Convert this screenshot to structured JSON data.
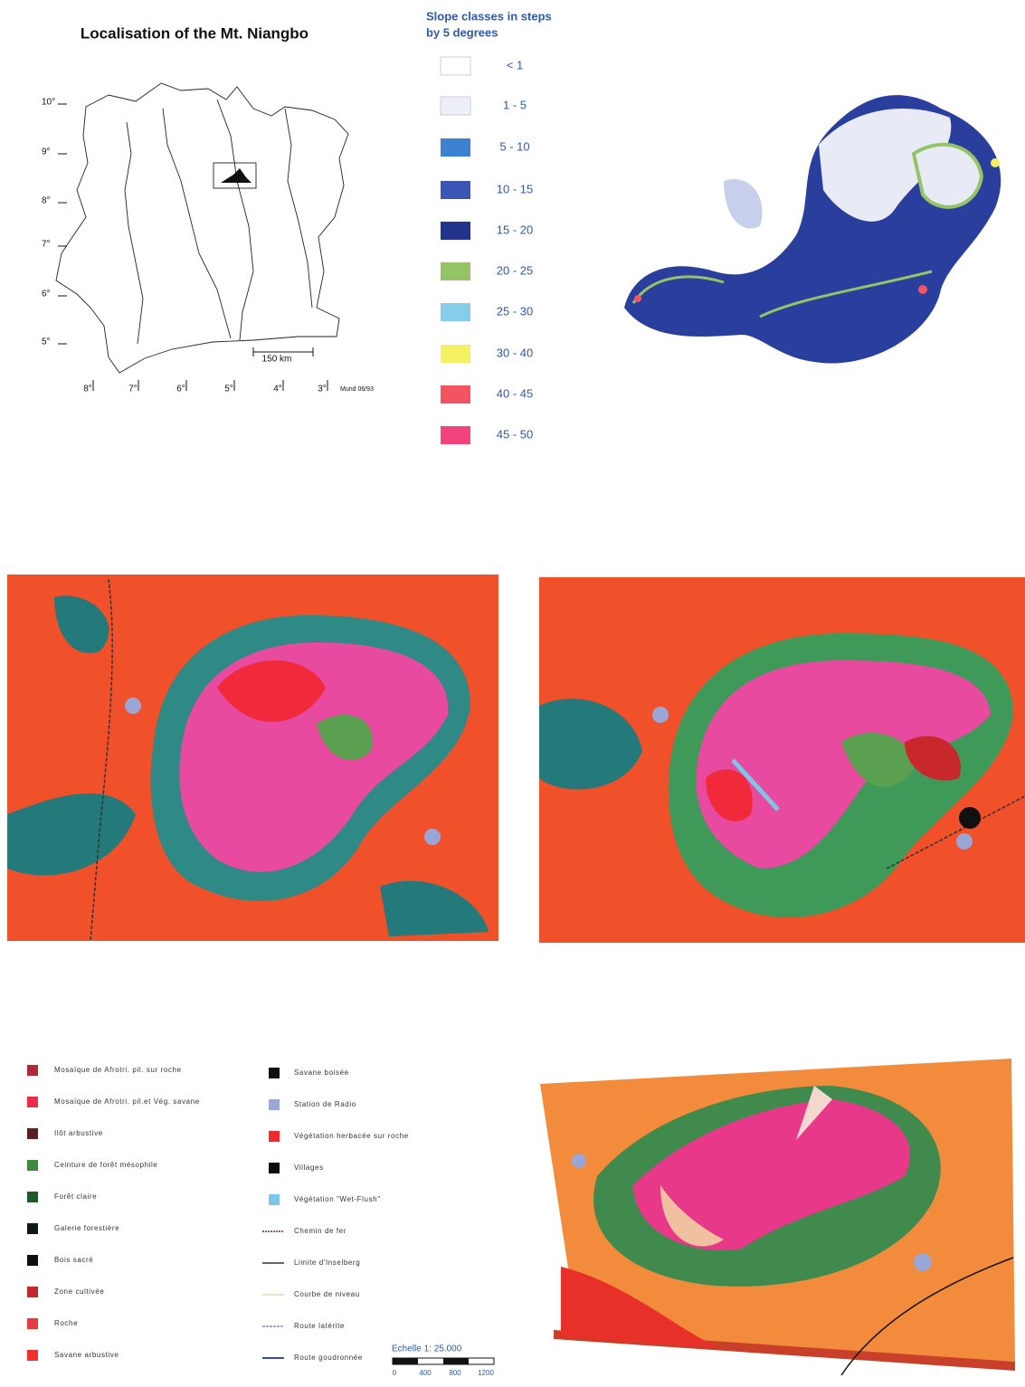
{
  "location_map": {
    "title": "Localisation of the Mt. Niangbo",
    "latitudes": [
      "10°",
      "9°",
      "8°",
      "7°",
      "6°",
      "5°"
    ],
    "longitudes": [
      "8°",
      "7°",
      "6°",
      "5°",
      "4°",
      "3°"
    ],
    "scale": "150 km",
    "credit": "Mund 06/93"
  },
  "slope_legend": {
    "title": [
      "Slope classes in steps",
      "by 5 degrees"
    ],
    "classes": [
      {
        "label": "< 1",
        "color": "#ffffff"
      },
      {
        "label": "1 - 5",
        "color": "#eceff8"
      },
      {
        "label": "5 - 10",
        "color": "#3d82d2"
      },
      {
        "label": "10 - 15",
        "color": "#3a55b4"
      },
      {
        "label": "15 - 20",
        "color": "#22338e"
      },
      {
        "label": "20 - 25",
        "color": "#95c466"
      },
      {
        "label": "25 - 30",
        "color": "#86cdec"
      },
      {
        "label": "30 - 40",
        "color": "#f4f062"
      },
      {
        "label": "40 - 45",
        "color": "#f25462"
      },
      {
        "label": "45 - 50",
        "color": "#f2437c"
      }
    ]
  },
  "vegetation_legend": {
    "left": [
      {
        "label": "Mosaïque de Afrotri. pil. sur roche",
        "color": "#b0283c"
      },
      {
        "label": "Mosaïque de Afrotri. pil.et Vég. savane",
        "color": "#ee2a48"
      },
      {
        "label": "Ilôt arbustive",
        "color": "#5a2020"
      },
      {
        "label": "Ceinture de forêt mésophile",
        "color": "#3f8a3c"
      },
      {
        "label": "Forêt claire",
        "color": "#1f5a2c"
      },
      {
        "label": "Galerie forestière",
        "color": "#111a12"
      },
      {
        "label": "Bois sacré",
        "color": "#0e0e10"
      },
      {
        "label": "Zone cultivée",
        "color": "#c0282c"
      },
      {
        "label": "Roche",
        "color": "#e83a3e"
      },
      {
        "label": "Savane arbustive",
        "color": "#f0302a"
      }
    ],
    "right": [
      {
        "label": "Savane boisée",
        "color": "#101010"
      },
      {
        "label": "Station de Radio",
        "color": "#9aa6d6"
      },
      {
        "label": "Végétation herbacée sur roche",
        "color": "#ee2a30"
      },
      {
        "label": "Villages",
        "color": "#0c0c0c"
      },
      {
        "label": "Végétation \"Wet-Flush\"",
        "color": "#7cc6e8"
      },
      {
        "label": "Chemin de fer",
        "color": "#6b2a3a"
      },
      {
        "label": "Limite d'Inselberg",
        "color": "#3a2a4a"
      },
      {
        "label": "Courbe de niveau",
        "color": "#e6d6b0"
      },
      {
        "label": "Route latérite",
        "color": "#8a8ac0"
      },
      {
        "label": "Route goudronnée",
        "color": "#3a4aa8"
      }
    ],
    "scale": {
      "title": "Echelle 1: 25.000",
      "ticks": [
        "0",
        "400",
        "800",
        "1200"
      ]
    }
  }
}
